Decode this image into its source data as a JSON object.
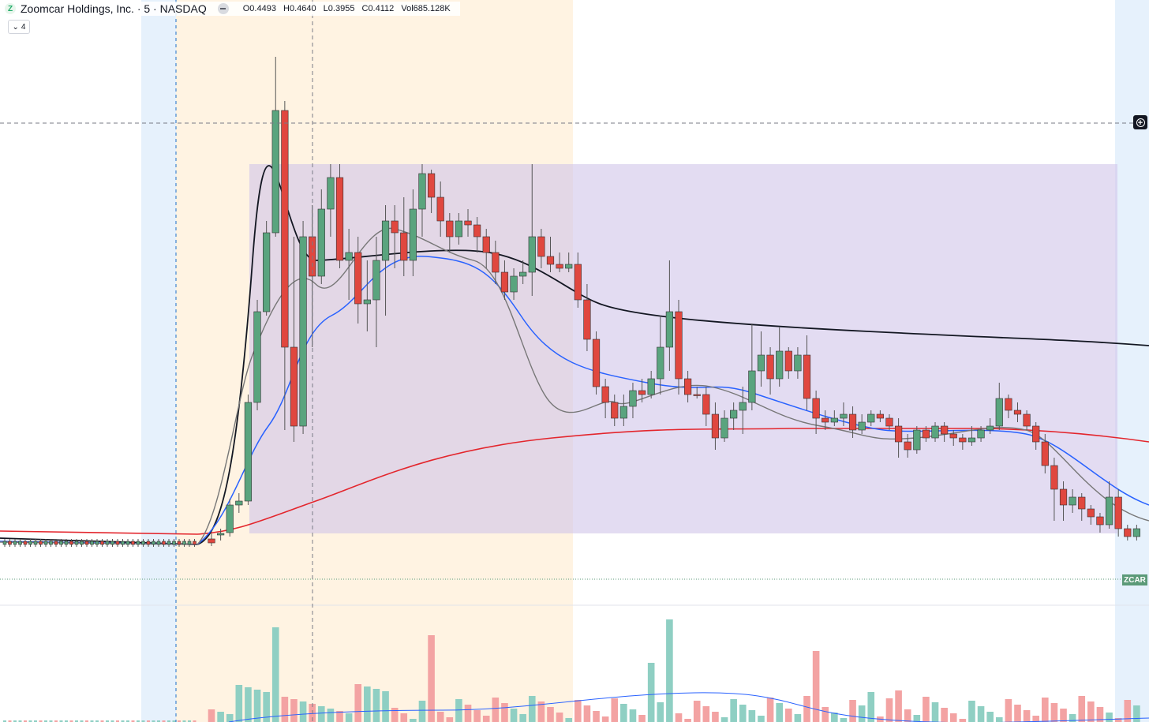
{
  "header": {
    "logo_letter": "Z",
    "title": "Zoomcar Holdings, Inc. · 5 · NASDAQ",
    "ohlc": {
      "open": "O0.4493",
      "high": "H0.4640",
      "low": "L0.3955",
      "close": "C0.4112",
      "volume": "Vol685.128K"
    },
    "indicator_count": "4"
  },
  "symbol_tag": "ZCAR",
  "colors": {
    "up": "#5aa47e",
    "down": "#e0473f",
    "vol_up": "#8fcfc3",
    "vol_down": "#f3a3a3",
    "ma_black": "#131722",
    "ma_red": "#e3262d",
    "ma_blue": "#2962ff",
    "ma_gray": "#777777",
    "box": "#d1c4e9",
    "session_blue": "#e6f1fc",
    "session_orange": "#fff3e2"
  },
  "chart_data": {
    "type": "candlestick",
    "title": "",
    "candles": [
      [
        0.11,
        0.12,
        0.1,
        0.11
      ],
      [
        0.11,
        0.12,
        0.1,
        0.11
      ],
      [
        0.11,
        0.12,
        0.1,
        0.11
      ],
      [
        0.11,
        0.12,
        0.1,
        0.11
      ],
      [
        0.11,
        0.12,
        0.1,
        0.11
      ],
      [
        0.11,
        0.12,
        0.1,
        0.11
      ],
      [
        0.11,
        0.12,
        0.1,
        0.11
      ],
      [
        0.11,
        0.12,
        0.1,
        0.11
      ],
      [
        0.11,
        0.12,
        0.1,
        0.11
      ],
      [
        0.11,
        0.12,
        0.1,
        0.11
      ],
      [
        0.11,
        0.12,
        0.1,
        0.11
      ],
      [
        0.11,
        0.12,
        0.1,
        0.11
      ],
      [
        0.11,
        0.12,
        0.1,
        0.11
      ],
      [
        0.11,
        0.12,
        0.1,
        0.11
      ],
      [
        0.11,
        0.12,
        0.1,
        0.11
      ],
      [
        0.11,
        0.12,
        0.1,
        0.11
      ],
      [
        0.11,
        0.12,
        0.1,
        0.11
      ],
      [
        0.11,
        0.12,
        0.1,
        0.11
      ],
      [
        0.11,
        0.12,
        0.1,
        0.11
      ],
      [
        0.11,
        0.12,
        0.1,
        0.11
      ],
      [
        0.11,
        0.12,
        0.1,
        0.11
      ],
      [
        0.11,
        0.12,
        0.1,
        0.11
      ],
      [
        0.11,
        0.12,
        0.1,
        0.11
      ],
      [
        0.11,
        0.12,
        0.1,
        0.11
      ],
      [
        0.11,
        0.12,
        0.1,
        0.11
      ],
      [
        0.11,
        0.12,
        0.1,
        0.11
      ],
      [
        0.11,
        0.12,
        0.1,
        0.11
      ],
      [
        0.11,
        0.12,
        0.1,
        0.11
      ],
      [
        0.11,
        0.12,
        0.1,
        0.11
      ],
      [
        0.11,
        0.12,
        0.1,
        0.11
      ],
      [
        0.11,
        0.12,
        0.1,
        0.11
      ],
      [
        0.11,
        0.12,
        0.1,
        0.11
      ],
      [
        0.11,
        0.12,
        0.1,
        0.11
      ],
      [
        0.11,
        0.12,
        0.1,
        0.11
      ],
      [
        0.11,
        0.12,
        0.1,
        0.11
      ],
      [
        0.11,
        0.12,
        0.1,
        0.11
      ],
      [
        0.11,
        0.12,
        0.1,
        0.11
      ],
      [
        0.11,
        0.12,
        0.1,
        0.11
      ],
      [
        0.11,
        0.12,
        0.1,
        0.11
      ],
      [
        0.11,
        0.12,
        0.1,
        0.11
      ],
      [
        0.11,
        0.12,
        0.1,
        0.11
      ],
      [
        0.11,
        0.12,
        0.1,
        0.11
      ],
      [
        0.11,
        0.12,
        0.1,
        0.11
      ],
      [
        0.11,
        0.12,
        0.1,
        0.11
      ],
      [
        0.11,
        0.12,
        0.1,
        0.11
      ],
      [
        0.11,
        0.12,
        0.1,
        0.11
      ],
      [
        0.11,
        0.12,
        0.1,
        0.11
      ],
      [
        0.11,
        0.12,
        0.1,
        0.11
      ],
      [
        0.11,
        0.12,
        0.1,
        0.11
      ],
      [
        0.11,
        0.12,
        0.1,
        0.11
      ],
      [
        0.11,
        0.12,
        0.1,
        0.11
      ],
      [
        0.11,
        0.12,
        0.1,
        0.11
      ],
      [
        0.11,
        0.12,
        0.1,
        0.11
      ],
      [
        0.11,
        0.12,
        0.1,
        0.11
      ],
      [
        0.11,
        0.12,
        0.1,
        0.11
      ],
      [
        0.11,
        0.12,
        0.1,
        0.11
      ],
      [
        0.11,
        0.12,
        0.1,
        0.11
      ],
      [
        0.11,
        0.12,
        0.1,
        0.11
      ],
      [
        0.11,
        0.12,
        0.1,
        0.11
      ],
      [
        0.11,
        0.12,
        0.1,
        0.11
      ],
      [
        0.11,
        0.12,
        0.1,
        0.11
      ],
      [
        0.11,
        0.12,
        0.1,
        0.11
      ],
      [
        0.11,
        0.12,
        0.1,
        0.11
      ],
      [
        0.11,
        0.12,
        0.1,
        0.11
      ],
      [
        0.11,
        0.12,
        0.1,
        0.11
      ],
      [
        0.11,
        0.12,
        0.1,
        0.11
      ],
      [
        0.11,
        0.12,
        0.1,
        0.11
      ],
      [
        0.11,
        0.12,
        0.1,
        0.11
      ],
      [
        0.11,
        0.12,
        0.1,
        0.11
      ],
      [
        0.11,
        0.12,
        0.1,
        0.11
      ]
    ]
  }
}
